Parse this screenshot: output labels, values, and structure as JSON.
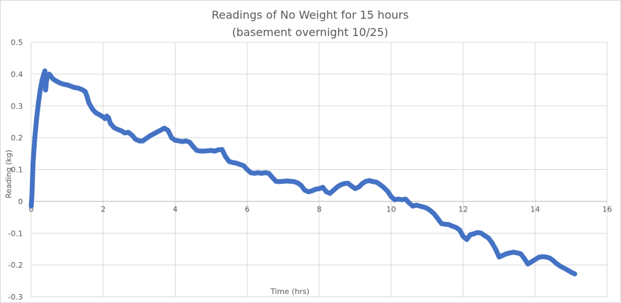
{
  "chart_data": {
    "type": "scatter",
    "title": "Readings of No Weight for 15 hours",
    "subtitle": "(basement overnight 10/25)",
    "xlabel": "Time (hrs)",
    "ylabel": "Reading (kg)",
    "xlim": [
      0,
      16
    ],
    "ylim": [
      -0.3,
      0.5
    ],
    "x_ticks": [
      0,
      2,
      4,
      6,
      8,
      10,
      12,
      14,
      16
    ],
    "y_ticks": [
      0.5,
      0.4,
      0.3,
      0.2,
      0.1,
      0,
      -0.1,
      -0.2,
      -0.3
    ],
    "x_tick_labels": [
      "0",
      "2",
      "4",
      "6",
      "8",
      "10",
      "12",
      "14",
      "16"
    ],
    "y_tick_labels": [
      "0.5",
      "0.4",
      "0.3",
      "0.2",
      "0.1",
      "0",
      "-0.1",
      "-0.2",
      "-0.3"
    ],
    "grid": true,
    "legend": "none",
    "series_color": "#4472c4",
    "grid_color": "#d9d9d9",
    "series": [
      {
        "x": [
          0,
          0.02,
          0.05,
          0.1,
          0.15,
          0.2,
          0.25,
          0.3,
          0.35,
          0.38,
          0.4,
          0.42,
          0.45,
          0.5,
          0.55,
          0.6,
          0.7,
          0.8,
          0.9,
          1.0,
          1.1,
          1.2,
          1.3,
          1.4,
          1.5,
          1.55,
          1.6,
          1.7,
          1.8,
          1.9,
          2.0,
          2.05,
          2.1,
          2.15,
          2.2,
          2.3,
          2.4,
          2.5,
          2.6,
          2.7,
          2.8,
          2.9,
          3.0,
          3.1,
          3.2,
          3.3,
          3.4,
          3.5,
          3.6,
          3.7,
          3.8,
          3.9,
          4.0,
          4.1,
          4.2,
          4.3,
          4.4,
          4.5,
          4.6,
          4.7,
          4.8,
          4.9,
          5.0,
          5.1,
          5.2,
          5.3,
          5.4,
          5.5,
          5.6,
          5.7,
          5.8,
          5.9,
          6.0,
          6.1,
          6.2,
          6.3,
          6.4,
          6.5,
          6.6,
          6.7,
          6.8,
          6.9,
          7.0,
          7.1,
          7.2,
          7.3,
          7.4,
          7.5,
          7.6,
          7.7,
          7.8,
          7.9,
          8.0,
          8.1,
          8.2,
          8.3,
          8.4,
          8.5,
          8.6,
          8.7,
          8.8,
          8.9,
          9.0,
          9.1,
          9.2,
          9.3,
          9.4,
          9.5,
          9.6,
          9.7,
          9.8,
          9.9,
          10.0,
          10.1,
          10.2,
          10.3,
          10.4,
          10.5,
          10.6,
          10.7,
          10.8,
          10.9,
          11.0,
          11.1,
          11.2,
          11.3,
          11.4,
          11.5,
          11.6,
          11.7,
          11.8,
          11.9,
          12.0,
          12.1,
          12.2,
          12.3,
          12.4,
          12.5,
          12.6,
          12.7,
          12.8,
          12.9,
          13.0,
          13.1,
          13.2,
          13.3,
          13.4,
          13.5,
          13.6,
          13.7,
          13.8,
          13.9,
          14.0,
          14.1,
          14.2,
          14.3,
          14.4,
          14.5,
          14.6,
          14.7,
          14.8,
          14.9,
          15.0,
          15.1
        ],
        "y": [
          -0.015,
          0.02,
          0.12,
          0.2,
          0.26,
          0.31,
          0.35,
          0.38,
          0.4,
          0.41,
          0.35,
          0.375,
          0.395,
          0.4,
          0.393,
          0.385,
          0.378,
          0.372,
          0.368,
          0.366,
          0.362,
          0.358,
          0.356,
          0.352,
          0.345,
          0.33,
          0.31,
          0.29,
          0.278,
          0.272,
          0.265,
          0.26,
          0.268,
          0.262,
          0.245,
          0.232,
          0.226,
          0.222,
          0.215,
          0.217,
          0.208,
          0.195,
          0.19,
          0.19,
          0.198,
          0.206,
          0.212,
          0.218,
          0.224,
          0.23,
          0.223,
          0.2,
          0.192,
          0.19,
          0.188,
          0.19,
          0.186,
          0.172,
          0.16,
          0.158,
          0.158,
          0.159,
          0.16,
          0.158,
          0.162,
          0.163,
          0.14,
          0.125,
          0.122,
          0.12,
          0.116,
          0.112,
          0.1,
          0.09,
          0.088,
          0.09,
          0.088,
          0.09,
          0.088,
          0.075,
          0.063,
          0.062,
          0.063,
          0.064,
          0.063,
          0.062,
          0.058,
          0.05,
          0.035,
          0.03,
          0.033,
          0.038,
          0.04,
          0.044,
          0.03,
          0.025,
          0.035,
          0.045,
          0.052,
          0.056,
          0.057,
          0.048,
          0.04,
          0.045,
          0.056,
          0.063,
          0.065,
          0.062,
          0.06,
          0.052,
          0.043,
          0.032,
          0.015,
          0.005,
          0.007,
          0.005,
          0.007,
          -0.005,
          -0.015,
          -0.012,
          -0.015,
          -0.018,
          -0.022,
          -0.03,
          -0.04,
          -0.055,
          -0.07,
          -0.072,
          -0.073,
          -0.078,
          -0.082,
          -0.09,
          -0.11,
          -0.12,
          -0.105,
          -0.102,
          -0.098,
          -0.1,
          -0.108,
          -0.115,
          -0.13,
          -0.15,
          -0.175,
          -0.17,
          -0.165,
          -0.162,
          -0.16,
          -0.162,
          -0.165,
          -0.18,
          -0.197,
          -0.19,
          -0.183,
          -0.176,
          -0.174,
          -0.175,
          -0.178,
          -0.186,
          -0.196,
          -0.204,
          -0.21,
          -0.216,
          -0.223,
          -0.228
        ]
      }
    ]
  }
}
